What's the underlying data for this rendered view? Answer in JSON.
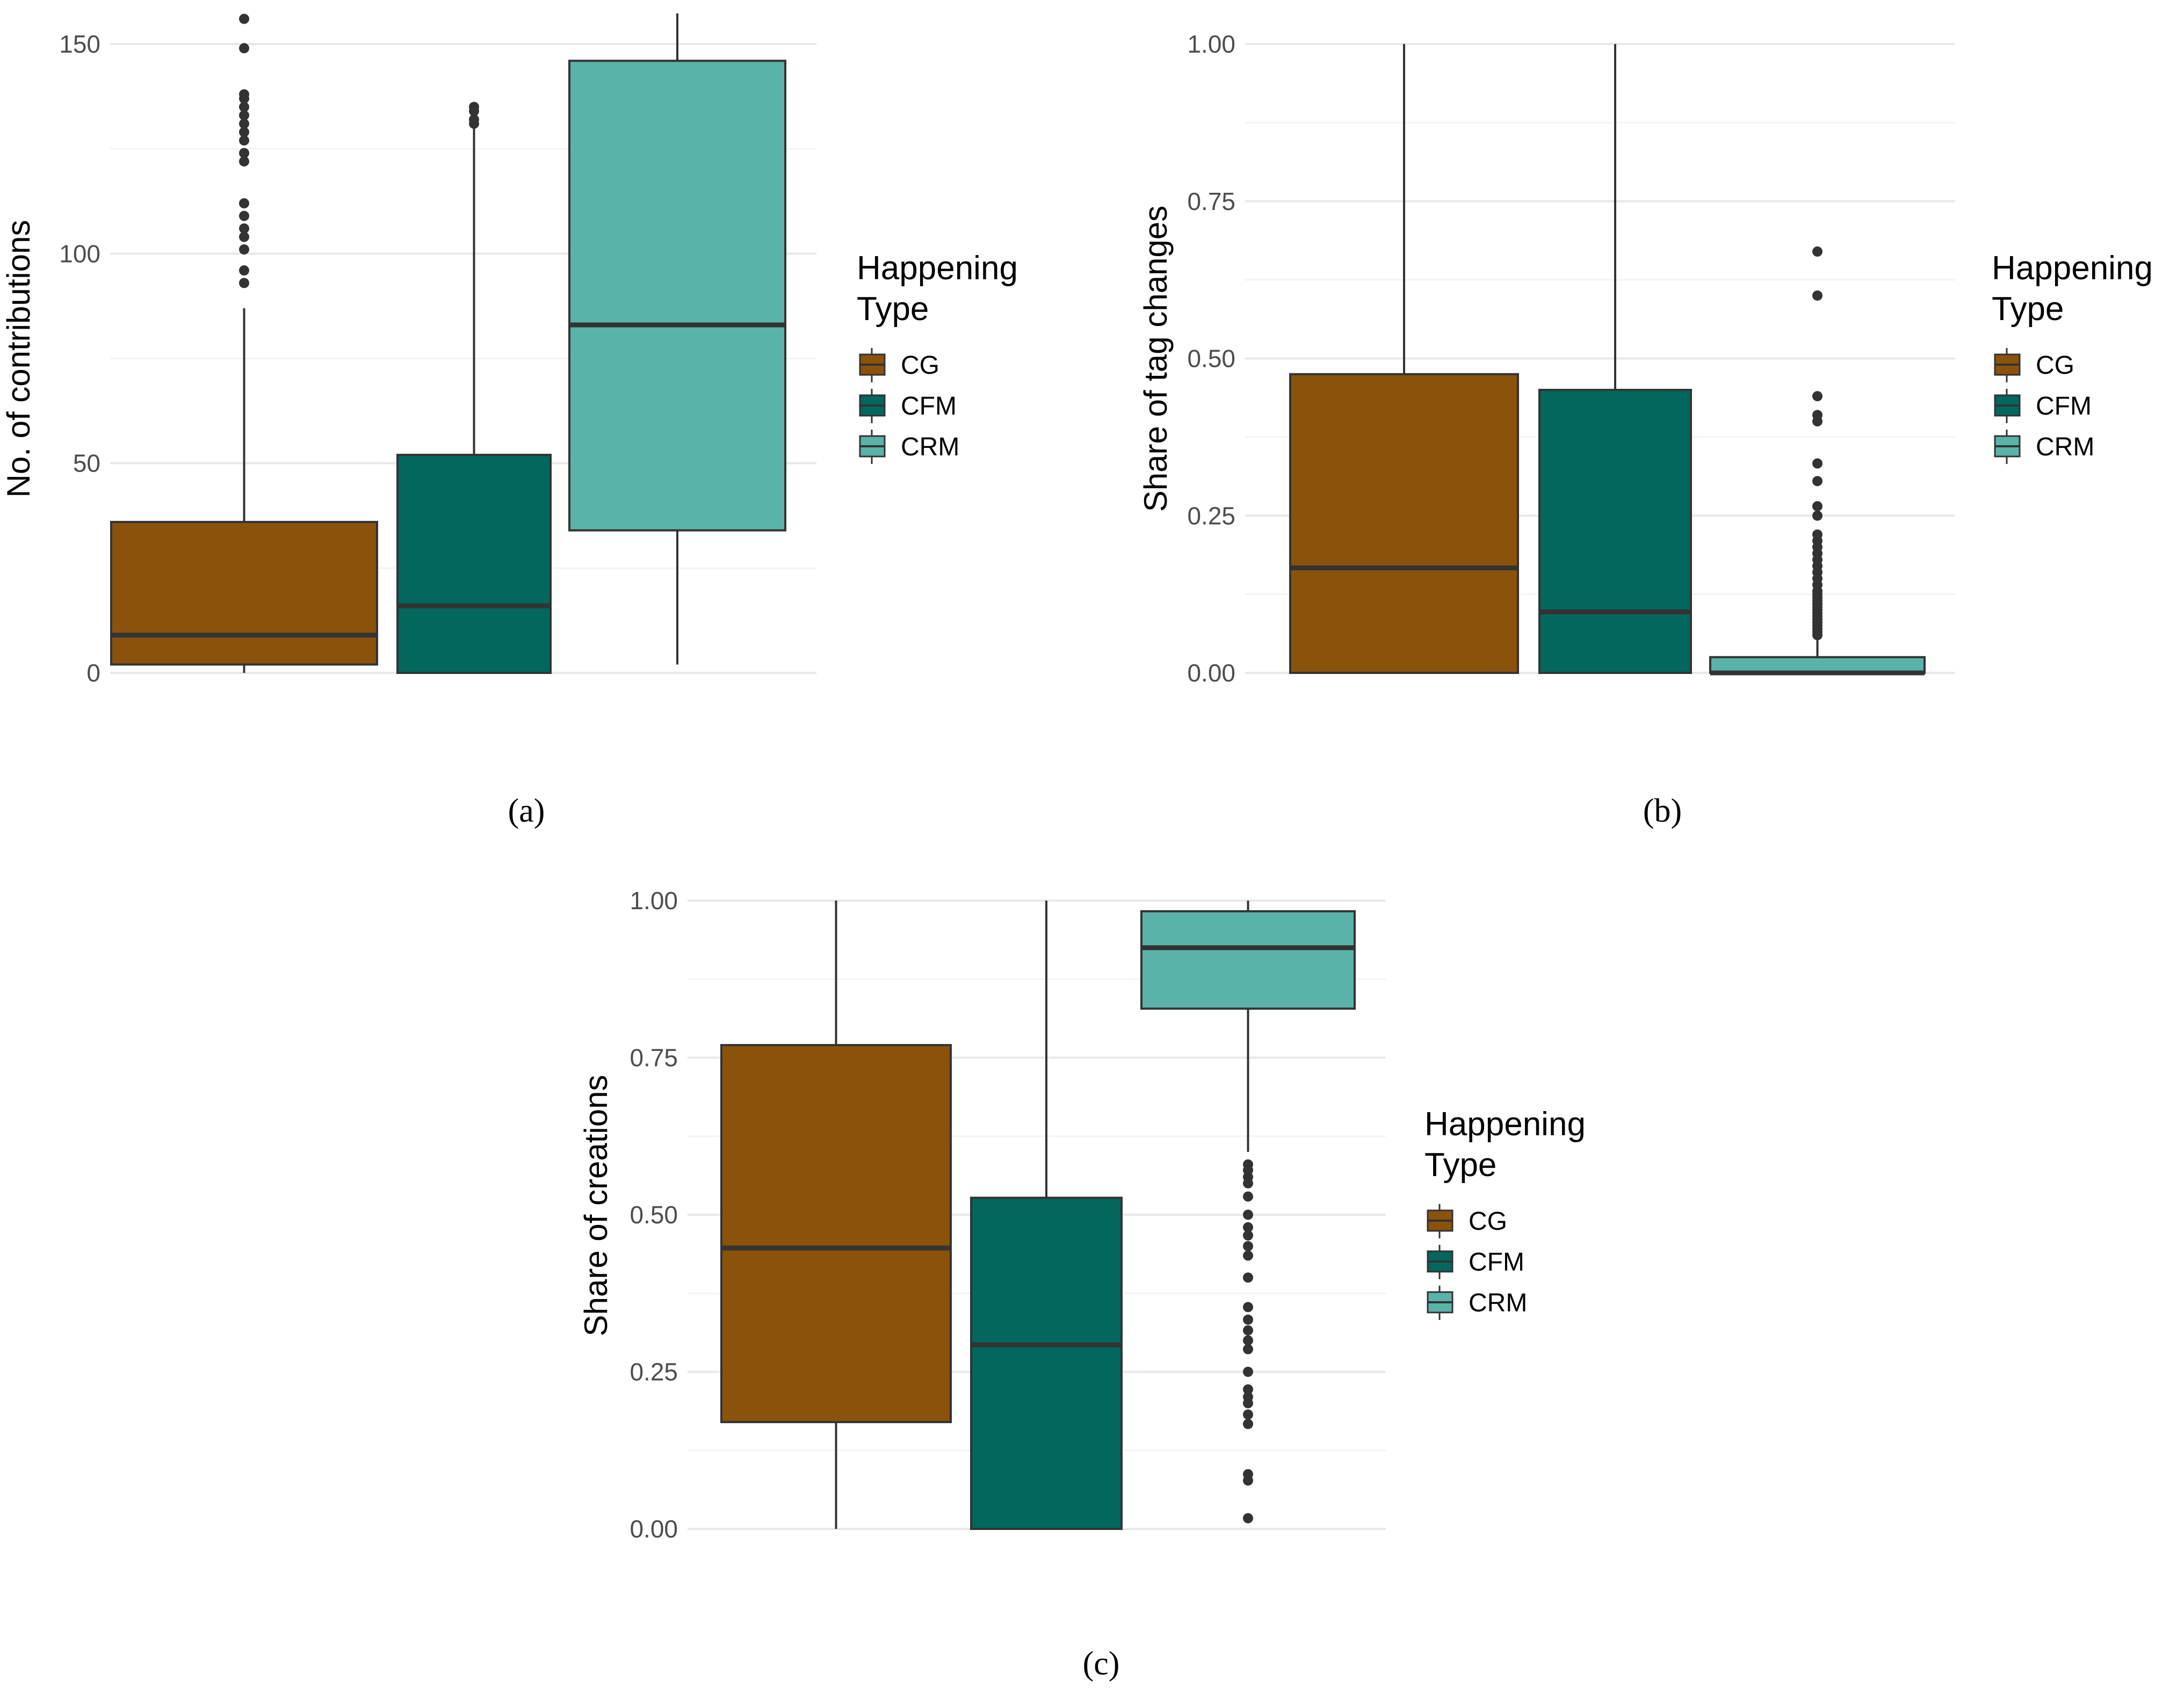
{
  "legend": {
    "title_line1": "Happening",
    "title_line2": "Type",
    "entries": [
      {
        "name": "CG",
        "color": "#8B520C"
      },
      {
        "name": "CFM",
        "color": "#02675E"
      },
      {
        "name": "CRM",
        "color": "#5AB3A9"
      }
    ]
  },
  "colors": {
    "grid_major": "#e8e8e8",
    "grid_minor": "#f3f3f3",
    "box_stroke": "#333333",
    "outlier": "#333333"
  },
  "chart_data": [
    {
      "type": "box",
      "panel": "a",
      "caption": "(a)",
      "ylabel": "No. of contributions",
      "ylim": [
        0,
        155
      ],
      "yticks": [
        0,
        50,
        100,
        150
      ],
      "ytick_labels": [
        "0",
        "50",
        "100",
        "150"
      ],
      "yminor": [
        25,
        75,
        125
      ],
      "categories": [
        "CG",
        "CFM",
        "CRM"
      ],
      "series": [
        {
          "name": "CG",
          "q1": 2,
          "median": 9,
          "q3": 36,
          "whisker_low": 0,
          "whisker_high": 87,
          "outliers": [
            93,
            96,
            101,
            104,
            106,
            109,
            112,
            122,
            124,
            127,
            129,
            131,
            133,
            135,
            137,
            138,
            149,
            156
          ]
        },
        {
          "name": "CFM",
          "q1": 0,
          "median": 16,
          "q3": 52,
          "whisker_low": 0,
          "whisker_high": 130,
          "outliers": [
            131,
            132,
            134,
            135
          ]
        },
        {
          "name": "CRM",
          "q1": 34,
          "median": 83,
          "q3": 146,
          "whisker_low": 2,
          "whisker_high": 158,
          "outliers": []
        }
      ]
    },
    {
      "type": "box",
      "panel": "b",
      "caption": "(b)",
      "ylabel": "Share of tag changes",
      "ylim": [
        0,
        1.0
      ],
      "yticks": [
        0,
        0.25,
        0.5,
        0.75,
        1.0
      ],
      "ytick_labels": [
        "0.00",
        "0.25",
        "0.50",
        "0.75",
        "1.00"
      ],
      "yminor": [
        0.125,
        0.375,
        0.625,
        0.875
      ],
      "categories": [
        "CG",
        "CFM",
        "CRM"
      ],
      "series": [
        {
          "name": "CG",
          "q1": 0,
          "median": 0.167,
          "q3": 0.475,
          "whisker_low": 0,
          "whisker_high": 1.0,
          "outliers": []
        },
        {
          "name": "CFM",
          "q1": 0,
          "median": 0.097,
          "q3": 0.45,
          "whisker_low": 0,
          "whisker_high": 1.0,
          "outliers": []
        },
        {
          "name": "CRM",
          "q1": 0,
          "median": 0.0,
          "q3": 0.025,
          "whisker_low": 0,
          "whisker_high": 0.055,
          "outliers": [
            0.06,
            0.065,
            0.07,
            0.075,
            0.08,
            0.085,
            0.09,
            0.095,
            0.1,
            0.105,
            0.11,
            0.115,
            0.12,
            0.125,
            0.13,
            0.14,
            0.15,
            0.16,
            0.17,
            0.18,
            0.19,
            0.2,
            0.21,
            0.22,
            0.25,
            0.265,
            0.305,
            0.333,
            0.4,
            0.41,
            0.44,
            0.6,
            0.67
          ]
        }
      ]
    },
    {
      "type": "box",
      "panel": "c",
      "caption": "(c)",
      "ylabel": "Share of creations",
      "ylim": [
        0,
        1.0
      ],
      "yticks": [
        0,
        0.25,
        0.5,
        0.75,
        1.0
      ],
      "ytick_labels": [
        "0.00",
        "0.25",
        "0.50",
        "0.75",
        "1.00"
      ],
      "yminor": [
        0.125,
        0.375,
        0.625,
        0.875
      ],
      "categories": [
        "CG",
        "CFM",
        "CRM"
      ],
      "series": [
        {
          "name": "CG",
          "q1": 0.17,
          "median": 0.447,
          "q3": 0.77,
          "whisker_low": 0,
          "whisker_high": 1.0,
          "outliers": []
        },
        {
          "name": "CFM",
          "q1": 0,
          "median": 0.293,
          "q3": 0.527,
          "whisker_low": 0,
          "whisker_high": 1.0,
          "outliers": []
        },
        {
          "name": "CRM",
          "q1": 0.828,
          "median": 0.925,
          "q3": 0.983,
          "whisker_low": 0.6,
          "whisker_high": 1.0,
          "outliers": [
            0.017,
            0.077,
            0.087,
            0.167,
            0.182,
            0.2,
            0.21,
            0.222,
            0.25,
            0.286,
            0.3,
            0.316,
            0.333,
            0.353,
            0.4,
            0.435,
            0.45,
            0.467,
            0.48,
            0.5,
            0.529,
            0.55,
            0.56,
            0.571,
            0.58
          ]
        }
      ]
    }
  ]
}
